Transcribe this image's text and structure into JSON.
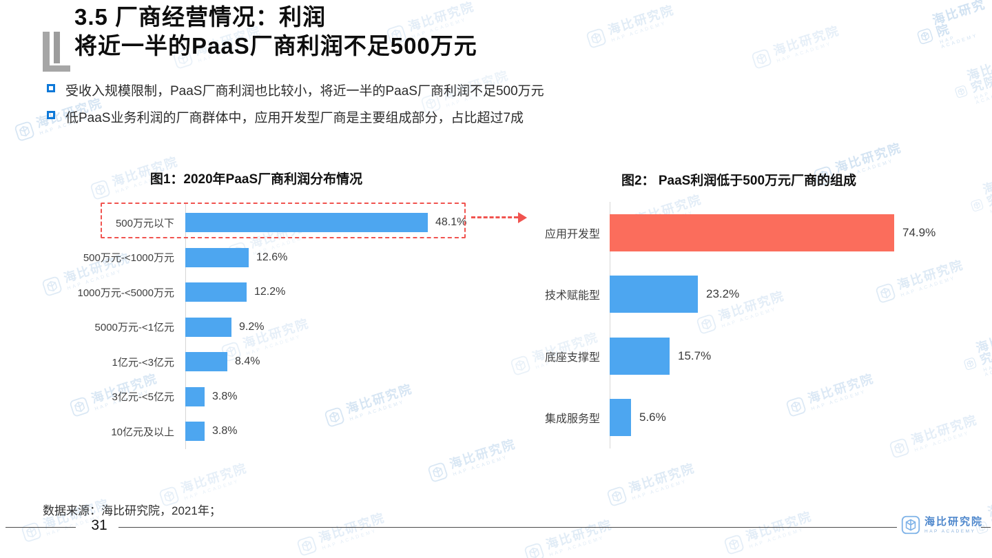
{
  "slide": {
    "title_line1": "3.5 厂商经营情况：利润",
    "title_line2": "将近一半的PaaS厂商利润不足500万元",
    "bullets": [
      "受收入规模限制，PaaS厂商利润也比较小，将近一半的PaaS厂商利润不足500万元",
      "低PaaS业务利润的厂商群体中，应用开发型厂商是主要组成部分，占比超过7成"
    ],
    "footer": {
      "source": "数据来源：海比研究院，2021年；",
      "page_number": "31",
      "logo_text": "海比研究院",
      "logo_subtext": "HAP ACADEMY"
    },
    "watermark": {
      "text": "海比研究院",
      "subtext": "HAP ACADEMY",
      "icon": "cube-3d-icon"
    }
  },
  "colors": {
    "bar_blue": "#4DA6F0",
    "bar_red": "#FB6D5C",
    "highlight_red": "#F0534F",
    "bullet_blue": "#0D78D8",
    "axis_gray": "#D6D6D6"
  },
  "chart_data": [
    {
      "type": "bar",
      "orientation": "horizontal",
      "title": "图1：2020年PaaS厂商利润分布情况",
      "categories": [
        "500万元以下",
        "500万元-<1000万元",
        "1000万元-<5000万元",
        "5000万元-<1亿元",
        "1亿元-<3亿元",
        "3亿元-<5亿元",
        "10亿元及以上"
      ],
      "values": [
        48.1,
        12.6,
        12.2,
        9.2,
        8.4,
        3.8,
        3.8
      ],
      "value_labels": [
        "48.1%",
        "12.6%",
        "12.2%",
        "9.2%",
        "8.4%",
        "3.8%",
        "3.8%"
      ],
      "bar_color": "#4DA6F0",
      "xlim": [
        0,
        50
      ],
      "grid": false,
      "legend": false,
      "highlight": {
        "index": 0,
        "style": "red-dashed-box",
        "arrow_points_to": "chart2"
      }
    },
    {
      "type": "bar",
      "orientation": "horizontal",
      "title": "图2： PaaS利润低于500万元厂商的组成",
      "categories": [
        "应用开发型",
        "技术赋能型",
        "底座支撑型",
        "集成服务型"
      ],
      "values": [
        74.9,
        23.2,
        15.7,
        5.6
      ],
      "value_labels": [
        "74.9%",
        "23.2%",
        "15.7%",
        "5.6%"
      ],
      "bar_colors": [
        "#FB6D5C",
        "#4DA6F0",
        "#4DA6F0",
        "#4DA6F0"
      ],
      "xlim": [
        0,
        80
      ],
      "grid": false,
      "legend": false
    }
  ]
}
